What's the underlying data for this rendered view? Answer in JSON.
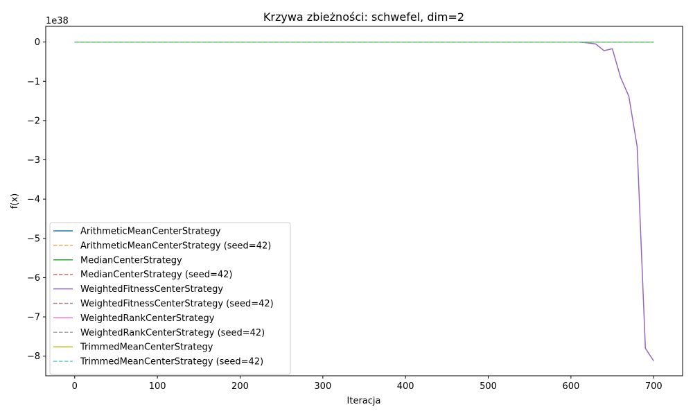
{
  "chart_data": {
    "type": "line",
    "title": "Krzywa zbieżności: schwefel, dim=2",
    "xlabel": "Iteracja",
    "ylabel": "f(x)",
    "y_offset_label": "1e38",
    "y_scale_exponent": 38,
    "xlim": [
      -35,
      735
    ],
    "ylim": [
      -8.5,
      0.4
    ],
    "xticks": [
      0,
      100,
      200,
      300,
      400,
      500,
      600,
      700
    ],
    "yticks": [
      0,
      -1,
      -2,
      -3,
      -4,
      -5,
      -6,
      -7,
      -8
    ],
    "ytick_labels": [
      "0",
      "−1",
      "−2",
      "−3",
      "−4",
      "−5",
      "−6",
      "−7",
      "−8"
    ],
    "grid": false,
    "legend_position": "lower-left",
    "series": [
      {
        "name": "ArithmeticMeanCenterStrategy",
        "color": "#1f77b4",
        "dash": "solid",
        "x": [
          0,
          700
        ],
        "y": [
          0,
          0
        ]
      },
      {
        "name": "ArithmeticMeanCenterStrategy (seed=42)",
        "color": "#ff7f0e",
        "dash": "dashed",
        "x": [
          0,
          700
        ],
        "y": [
          0,
          0
        ]
      },
      {
        "name": "MedianCenterStrategy",
        "color": "#2ca02c",
        "dash": "solid",
        "x": [
          0,
          700
        ],
        "y": [
          0,
          0
        ]
      },
      {
        "name": "MedianCenterStrategy (seed=42)",
        "color": "#d62728",
        "dash": "dashed",
        "x": [
          0,
          700
        ],
        "y": [
          0,
          0
        ]
      },
      {
        "name": "WeightedFitnessCenterStrategy",
        "color": "#9467bd",
        "dash": "solid",
        "x": [
          0,
          610,
          620,
          630,
          640,
          650,
          660,
          670,
          680,
          690,
          700
        ],
        "y": [
          0,
          0,
          -0.02,
          -0.05,
          -0.22,
          -0.17,
          -0.9,
          -1.38,
          -2.66,
          -7.8,
          -8.12
        ]
      },
      {
        "name": "WeightedFitnessCenterStrategy (seed=42)",
        "color": "#8c564b",
        "dash": "dashed",
        "x": [
          0,
          700
        ],
        "y": [
          0,
          0
        ]
      },
      {
        "name": "WeightedRankCenterStrategy",
        "color": "#e377c2",
        "dash": "solid",
        "x": [
          0,
          700
        ],
        "y": [
          0,
          0
        ]
      },
      {
        "name": "WeightedRankCenterStrategy (seed=42)",
        "color": "#7f7f7f",
        "dash": "dashed",
        "x": [
          0,
          700
        ],
        "y": [
          0,
          0
        ]
      },
      {
        "name": "TrimmedMeanCenterStrategy",
        "color": "#bcbd22",
        "dash": "solid",
        "x": [
          0,
          700
        ],
        "y": [
          0,
          0
        ]
      },
      {
        "name": "TrimmedMeanCenterStrategy (seed=42)",
        "color": "#17becf",
        "dash": "dashed",
        "x": [
          0,
          700
        ],
        "y": [
          0,
          0
        ]
      }
    ]
  }
}
